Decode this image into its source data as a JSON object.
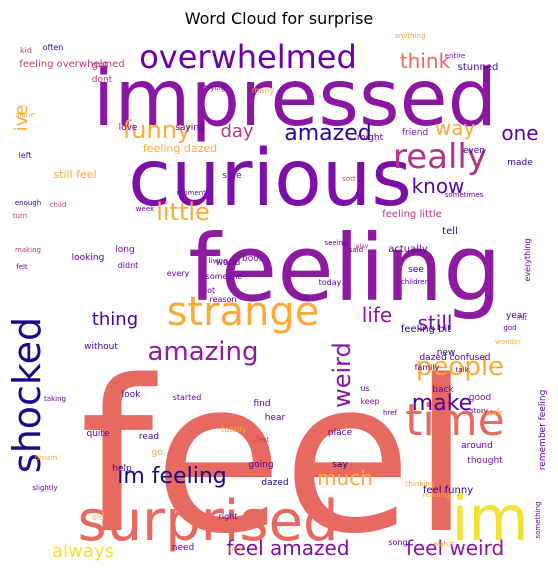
{
  "chart_data": {
    "type": "wordcloud",
    "title": "Word Cloud for surprise",
    "colormap": "plasma",
    "background": "#ffffff",
    "words": [
      {
        "text": "feel",
        "color": "#e8695f"
      },
      {
        "text": "feeling",
        "color": "#8e1aa0"
      },
      {
        "text": "curious",
        "color": "#7d0ea8"
      },
      {
        "text": "impressed",
        "color": "#8b16a1"
      },
      {
        "text": "surprised",
        "color": "#e8695f"
      },
      {
        "text": "im",
        "color": "#f3e134"
      },
      {
        "text": "strange",
        "color": "#fbaa38"
      },
      {
        "text": "shocked",
        "color": "#1a0a86"
      },
      {
        "text": "time",
        "color": "#e8695f"
      },
      {
        "text": "overwhelmed",
        "color": "#6a00a8"
      },
      {
        "text": "really",
        "color": "#b33389"
      },
      {
        "text": "amazing",
        "color": "#8e1aa0"
      },
      {
        "text": "people",
        "color": "#fbaa38"
      },
      {
        "text": "amazed",
        "color": "#2c0594"
      },
      {
        "text": "funny",
        "color": "#fbaa38"
      },
      {
        "text": "little",
        "color": "#fbaa38"
      },
      {
        "text": "im feeling",
        "color": "#1a0a86"
      },
      {
        "text": "feel amazed",
        "color": "#7d0ea8"
      },
      {
        "text": "feel weird",
        "color": "#8b16a1"
      },
      {
        "text": "weird",
        "color": "#8b16a1"
      },
      {
        "text": "make",
        "color": "#4c02a1"
      },
      {
        "text": "much",
        "color": "#fbaa38"
      },
      {
        "text": "one",
        "color": "#5b01a5"
      },
      {
        "text": "way",
        "color": "#fbaa38"
      },
      {
        "text": "know",
        "color": "#5b01a5"
      },
      {
        "text": "think",
        "color": "#e8695f"
      },
      {
        "text": "still",
        "color": "#7d0ea8"
      },
      {
        "text": "life",
        "color": "#8b16a1"
      },
      {
        "text": "thing",
        "color": "#4c02a1"
      },
      {
        "text": "day",
        "color": "#c03a76"
      },
      {
        "text": "always",
        "color": "#f3e134"
      },
      {
        "text": "ive",
        "color": "#fbaa38"
      },
      {
        "text": "feeling overwhelmed",
        "color": "#c03a76"
      },
      {
        "text": "stunned",
        "color": "#4c02a1"
      },
      {
        "text": "feeling dazed",
        "color": "#fbaa38"
      },
      {
        "text": "still feel",
        "color": "#fbaa38"
      },
      {
        "text": "feeling little",
        "color": "#b33389"
      },
      {
        "text": "feeling bit",
        "color": "#2c0594"
      },
      {
        "text": "dazed confused",
        "color": "#4c02a1"
      },
      {
        "text": "remember feeling",
        "color": "#5b01a5"
      },
      {
        "text": "feel funny",
        "color": "#2c0594"
      },
      {
        "text": "friend",
        "color": "#7d0ea8"
      },
      {
        "text": "even",
        "color": "#4c02a1"
      },
      {
        "text": "made",
        "color": "#2c0594"
      },
      {
        "text": "got",
        "color": "#c03a76"
      },
      {
        "text": "dont",
        "color": "#c03a76"
      },
      {
        "text": "love",
        "color": "#6a00a8"
      },
      {
        "text": "saying",
        "color": "#6a00a8"
      },
      {
        "text": "sure",
        "color": "#6a00a8"
      },
      {
        "text": "might",
        "color": "#6a00a8"
      },
      {
        "text": "actually",
        "color": "#4c02a1"
      },
      {
        "text": "tell",
        "color": "#2c0594"
      },
      {
        "text": "book",
        "color": "#7d0ea8"
      },
      {
        "text": "world",
        "color": "#6a00a8"
      },
      {
        "text": "see",
        "color": "#2c0594"
      },
      {
        "text": "year",
        "color": "#2c0594"
      },
      {
        "text": "new",
        "color": "#1a0a86"
      },
      {
        "text": "back",
        "color": "#6a00a8"
      },
      {
        "text": "good",
        "color": "#8b16a1"
      },
      {
        "text": "work",
        "color": "#fbaa38"
      },
      {
        "text": "around",
        "color": "#6a00a8"
      },
      {
        "text": "thought",
        "color": "#7d0ea8"
      },
      {
        "text": "quite",
        "color": "#6a00a8"
      },
      {
        "text": "read",
        "color": "#4c02a1"
      },
      {
        "text": "go",
        "color": "#fbaa38"
      },
      {
        "text": "dazed",
        "color": "#1a0a86"
      },
      {
        "text": "going",
        "color": "#4c02a1"
      },
      {
        "text": "say",
        "color": "#1a0a86"
      },
      {
        "text": "place",
        "color": "#6a00a8"
      },
      {
        "text": "find",
        "color": "#4c02a1"
      },
      {
        "text": "hear",
        "color": "#4c02a1"
      },
      {
        "text": "totally",
        "color": "#fbaa38"
      },
      {
        "text": "help",
        "color": "#4c02a1"
      },
      {
        "text": "right",
        "color": "#4c02a1"
      },
      {
        "text": "need",
        "color": "#6a00a8"
      },
      {
        "text": "song",
        "color": "#6a00a8"
      },
      {
        "text": "old",
        "color": "#fbaa38"
      },
      {
        "text": "lot",
        "color": "#6a00a8"
      },
      {
        "text": "reason",
        "color": "#6a00a8"
      },
      {
        "text": "without",
        "color": "#4c02a1"
      },
      {
        "text": "started",
        "color": "#6a00a8"
      },
      {
        "text": "look",
        "color": "#4c02a1"
      },
      {
        "text": "looking",
        "color": "#4c02a1"
      },
      {
        "text": "long",
        "color": "#7d0ea8"
      },
      {
        "text": "didnt",
        "color": "#6a00a8"
      },
      {
        "text": "every",
        "color": "#6a00a8"
      },
      {
        "text": "someone",
        "color": "#6a00a8"
      },
      {
        "text": "today",
        "color": "#6a00a8"
      },
      {
        "text": "bit",
        "color": "#6a00a8"
      },
      {
        "text": "family",
        "color": "#6a00a8"
      },
      {
        "text": "us",
        "color": "#6a00a8"
      },
      {
        "text": "keep",
        "color": "#8b16a1"
      },
      {
        "text": "everything",
        "color": "#6a00a8"
      },
      {
        "text": "something",
        "color": "#6a00a8"
      },
      {
        "text": "sometimes",
        "color": "#6a00a8"
      },
      {
        "text": "moments",
        "color": "#7d0ea8"
      },
      {
        "text": "week",
        "color": "#6a00a8"
      },
      {
        "text": "many",
        "color": "#fbaa38"
      },
      {
        "text": "trying",
        "color": "#6a00a8"
      },
      {
        "text": "often",
        "color": "#2c0594"
      },
      {
        "text": "kid",
        "color": "#c03a76"
      },
      {
        "text": "left",
        "color": "#4c02a1"
      },
      {
        "text": "alone",
        "color": "#fbaa38"
      },
      {
        "text": "enough",
        "color": "#2c0594"
      },
      {
        "text": "making",
        "color": "#c03a76"
      },
      {
        "text": "felt",
        "color": "#6a00a8"
      },
      {
        "text": "anything",
        "color": "#fbaa38"
      },
      {
        "text": "entire",
        "color": "#7d0ea8"
      },
      {
        "text": "talk",
        "color": "#6a00a8"
      },
      {
        "text": "last",
        "color": "#c03a76"
      },
      {
        "text": "reading",
        "color": "#fbaa38"
      },
      {
        "text": "href",
        "color": "#4c02a1"
      },
      {
        "text": "living",
        "color": "#6a00a8"
      },
      {
        "text": "sort",
        "color": "#c03a76"
      },
      {
        "text": "said",
        "color": "#6a00a8"
      },
      {
        "text": "children",
        "color": "#6a00a8"
      },
      {
        "text": "story",
        "color": "#6a00a8"
      },
      {
        "text": "wonder",
        "color": "#fbaa38"
      },
      {
        "text": "list",
        "color": "#c03a76"
      },
      {
        "text": "god",
        "color": "#6a00a8"
      },
      {
        "text": "dream",
        "color": "#fbaa38"
      },
      {
        "text": "slightly",
        "color": "#6a00a8"
      },
      {
        "text": "taking",
        "color": "#6a00a8"
      },
      {
        "text": "child",
        "color": "#c03a76"
      },
      {
        "text": "turn",
        "color": "#c03a76"
      },
      {
        "text": "play",
        "color": "#c03a76"
      },
      {
        "text": "seeing",
        "color": "#6a00a8"
      },
      {
        "text": "thinking",
        "color": "#fbaa38"
      },
      {
        "text": "watch",
        "color": "#fbaa38"
      },
      {
        "text": "pick",
        "color": "#fbaa38"
      }
    ]
  }
}
